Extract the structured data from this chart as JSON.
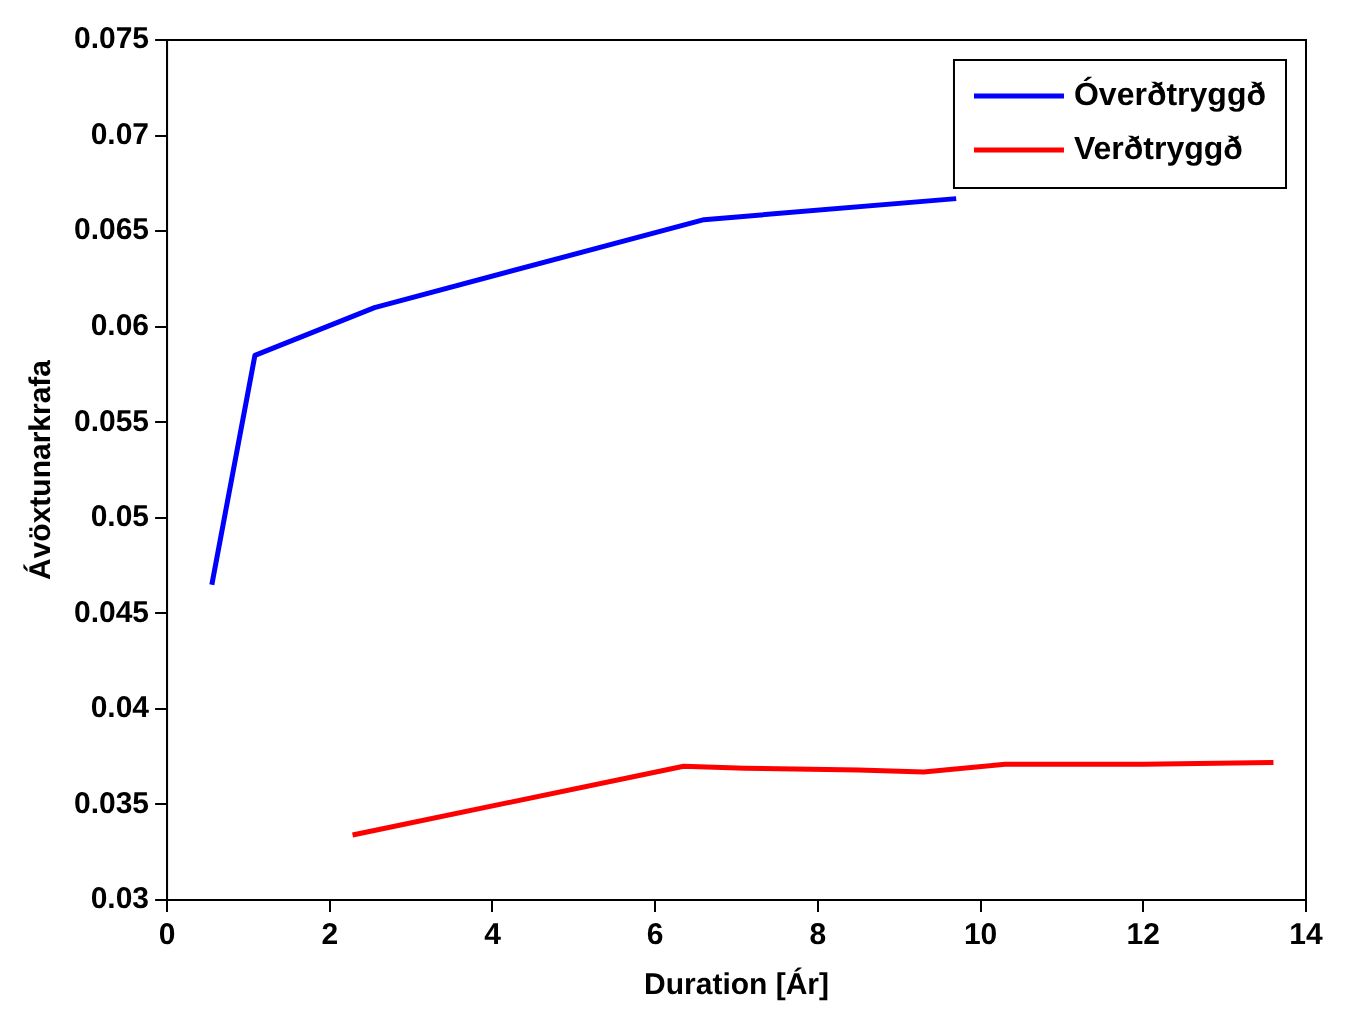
{
  "chart_data": {
    "type": "line",
    "xlabel": "Duration [Ár]",
    "ylabel": "Ávöxtunarkrafa",
    "xlim": [
      0,
      14
    ],
    "xticks": [
      0,
      2,
      4,
      6,
      8,
      10,
      12,
      14
    ],
    "ylim": [
      0.03,
      0.075
    ],
    "yticks": [
      0.03,
      0.035,
      0.04,
      0.045,
      0.05,
      0.055,
      0.06,
      0.065,
      0.07,
      0.075
    ],
    "grid": false,
    "legend": "top right",
    "line_style": "solid",
    "marker": "none",
    "series": [
      {
        "name": "Óverðtryggð",
        "color": "#0000ff",
        "x": [
          0.55,
          1.08,
          2.55,
          6.6,
          9.7
        ],
        "values": [
          0.0465,
          0.0585,
          0.061,
          0.0656,
          0.0667
        ]
      },
      {
        "name": "Verðtryggð",
        "color": "#ff0000",
        "x": [
          2.28,
          6.35,
          7.1,
          8.5,
          9.3,
          10.3,
          12,
          13.6
        ],
        "values": [
          0.0334,
          0.037,
          0.0369,
          0.0368,
          0.0367,
          0.0371,
          0.0371,
          0.0372
        ]
      }
    ]
  }
}
